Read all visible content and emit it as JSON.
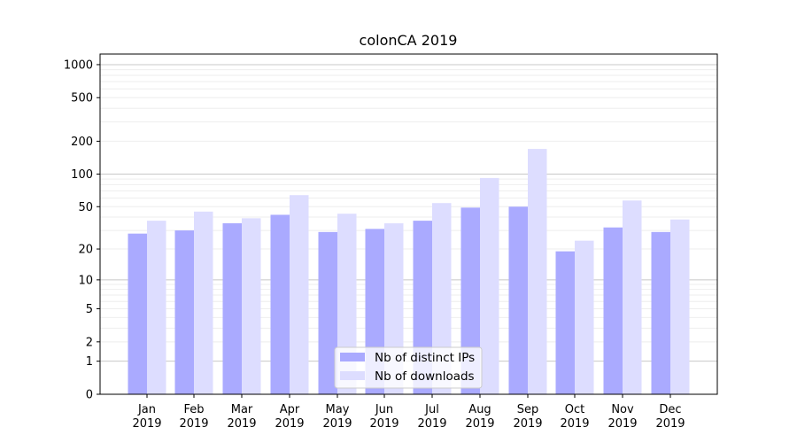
{
  "chart_data": {
    "type": "bar",
    "title": "colonCA 2019",
    "xlabel": "",
    "ylabel": "",
    "yscale": "log(v+1)",
    "ylim": [
      0,
      1300
    ],
    "yticks": [
      0,
      1,
      2,
      5,
      10,
      20,
      50,
      100,
      200,
      500,
      1000
    ],
    "ytick_labels": [
      "0",
      "1",
      "2",
      "5",
      "10",
      "20",
      "50",
      "100",
      "200",
      "500",
      "1000"
    ],
    "grid": true,
    "legend_position": "lower-center",
    "categories": [
      {
        "month": "Jan",
        "year": "2019"
      },
      {
        "month": "Feb",
        "year": "2019"
      },
      {
        "month": "Mar",
        "year": "2019"
      },
      {
        "month": "Apr",
        "year": "2019"
      },
      {
        "month": "May",
        "year": "2019"
      },
      {
        "month": "Jun",
        "year": "2019"
      },
      {
        "month": "Jul",
        "year": "2019"
      },
      {
        "month": "Aug",
        "year": "2019"
      },
      {
        "month": "Sep",
        "year": "2019"
      },
      {
        "month": "Oct",
        "year": "2019"
      },
      {
        "month": "Nov",
        "year": "2019"
      },
      {
        "month": "Dec",
        "year": "2019"
      }
    ],
    "series": [
      {
        "name": "Nb of distinct IPs",
        "color": "#aaaaff",
        "values": [
          28,
          30,
          35,
          42,
          29,
          31,
          37,
          49,
          50,
          19,
          32,
          29
        ]
      },
      {
        "name": "Nb of downloads",
        "color": "#ddddff",
        "values": [
          37,
          45,
          39,
          64,
          43,
          35,
          54,
          92,
          170,
          24,
          57,
          38
        ]
      }
    ]
  }
}
